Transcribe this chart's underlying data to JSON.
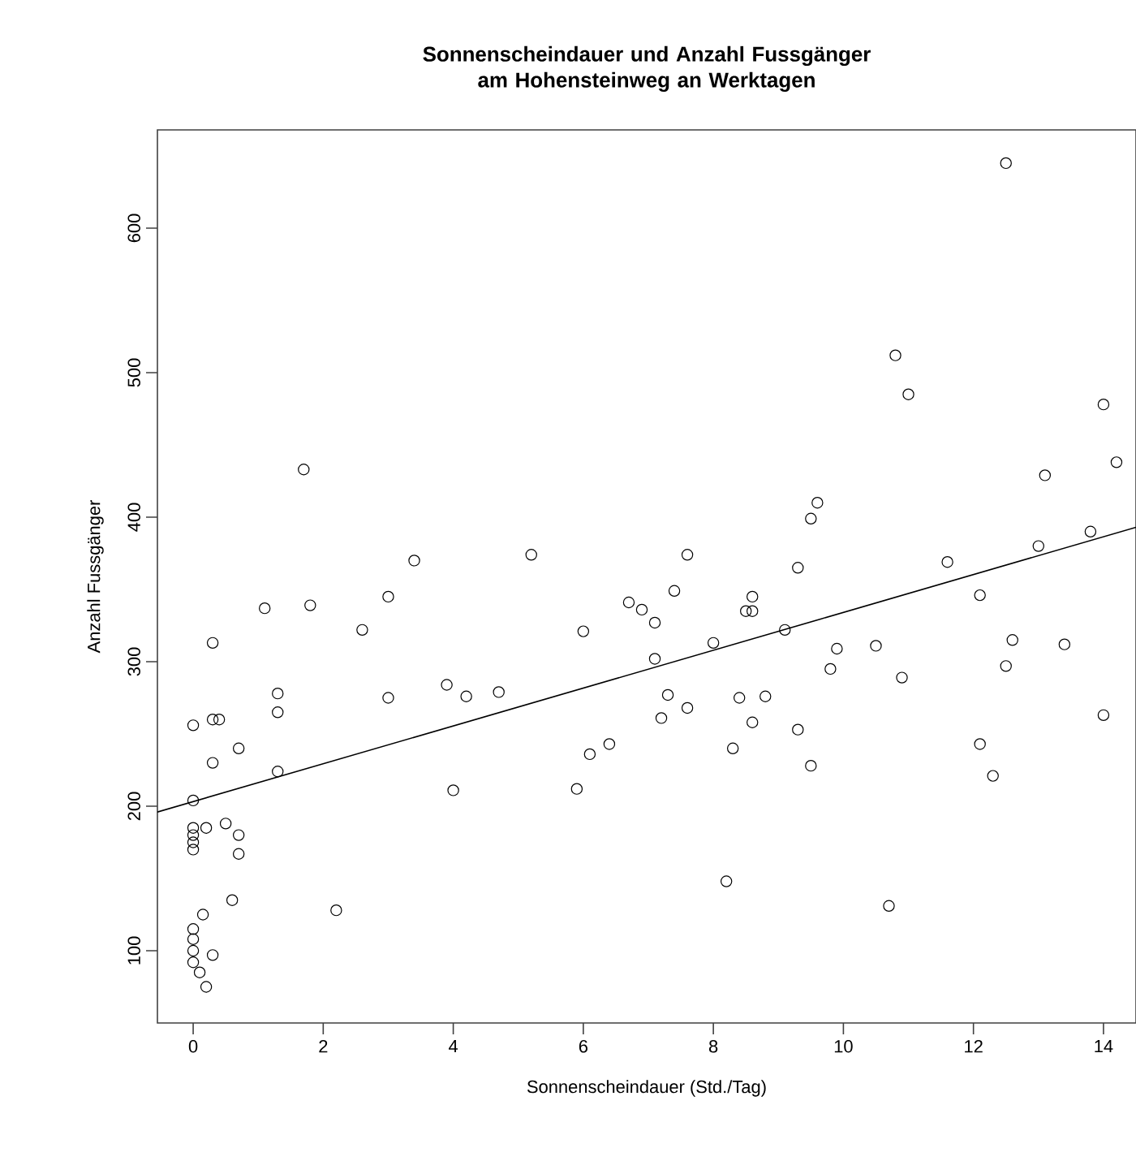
{
  "chart_data": {
    "type": "scatter",
    "title": "Sonnenscheindauer und Anzahl Fussgänger am Hohensteinweg an Werktagen",
    "xlabel": "Sonnenscheindauer (Std./Tag)",
    "ylabel": "Anzahl Fussgänger",
    "xlim": [
      -0.55,
      14.5
    ],
    "ylim": [
      50,
      668
    ],
    "xticks": [
      0,
      2,
      4,
      6,
      8,
      10,
      12,
      14
    ],
    "yticks": [
      100,
      200,
      300,
      400,
      500,
      600
    ],
    "grid": false,
    "series": [
      {
        "marker": "circle",
        "color": "#000000",
        "x": [
          0,
          0,
          0,
          0,
          0,
          0,
          0,
          0,
          0,
          0,
          0.1,
          0.15,
          0.2,
          0.2,
          0.3,
          0.3,
          0.3,
          0.4,
          0.3,
          0.5,
          0.6,
          0.7,
          0.7,
          0.7,
          1.1,
          1.3,
          1.3,
          1.3,
          1.7,
          1.8,
          2.2,
          2.6,
          3.0,
          3.0,
          3.4,
          3.9,
          4.0,
          4.2,
          4.7,
          5.2,
          5.9,
          6.0,
          6.1,
          6.4,
          6.7,
          6.9,
          7.1,
          7.1,
          7.2,
          7.3,
          7.4,
          7.6,
          7.6,
          8.0,
          8.2,
          8.3,
          8.4,
          8.5,
          8.6,
          8.6,
          8.6,
          8.8,
          9.1,
          9.3,
          9.3,
          9.5,
          9.5,
          9.6,
          9.8,
          9.9,
          10.5,
          10.7,
          10.8,
          10.9,
          11.0,
          11.6,
          12.1,
          12.1,
          12.3,
          12.5,
          12.5,
          12.6,
          13.0,
          13.1,
          13.4,
          13.8,
          14.0,
          14.0,
          14.2
        ],
        "values": [
          256,
          204,
          185,
          180,
          175,
          170,
          115,
          108,
          100,
          92,
          85,
          125,
          75,
          185,
          97,
          230,
          260,
          260,
          313,
          188,
          135,
          180,
          167,
          240,
          337,
          278,
          265,
          224,
          433,
          339,
          128,
          322,
          345,
          275,
          370,
          284,
          211,
          276,
          279,
          374,
          212,
          321,
          236,
          243,
          341,
          336,
          327,
          302,
          261,
          277,
          349,
          374,
          268,
          313,
          148,
          240,
          275,
          335,
          345,
          335,
          258,
          276,
          322,
          365,
          253,
          399,
          228,
          410,
          295,
          309,
          311,
          131,
          512,
          289,
          485,
          369,
          346,
          243,
          221,
          645,
          297,
          315,
          380,
          429,
          312,
          390,
          478,
          263,
          438
        ]
      },
      {
        "type": "line",
        "marker": "none",
        "color": "#000000",
        "x": [
          -0.55,
          14.5
        ],
        "values": [
          196,
          393
        ]
      }
    ]
  }
}
